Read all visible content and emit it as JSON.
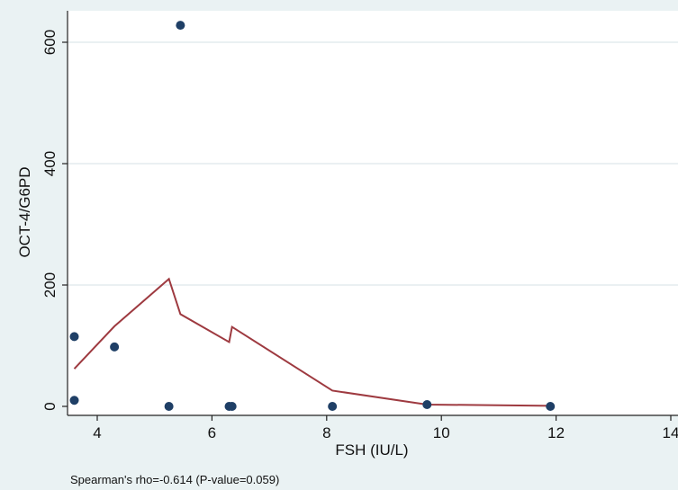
{
  "chart_data": {
    "type": "scatter",
    "title": "",
    "xlabel": "FSH (IU/L)",
    "ylabel": "OCT-4/G6PD",
    "xlim": [
      3.5,
      14
    ],
    "ylim": [
      0,
      630
    ],
    "x_ticks": [
      4,
      6,
      8,
      10,
      12,
      14
    ],
    "y_ticks": [
      0,
      200,
      400,
      600
    ],
    "grid": "horizontal",
    "series": [
      {
        "kind": "scatter",
        "color": "#1f3f66",
        "points": [
          {
            "x": 3.6,
            "y": 115
          },
          {
            "x": 3.6,
            "y": 10
          },
          {
            "x": 4.3,
            "y": 98
          },
          {
            "x": 5.25,
            "y": 0
          },
          {
            "x": 5.45,
            "y": 628
          },
          {
            "x": 6.3,
            "y": 0
          },
          {
            "x": 6.35,
            "y": 0
          },
          {
            "x": 8.1,
            "y": 0
          },
          {
            "x": 9.75,
            "y": 3
          },
          {
            "x": 11.9,
            "y": 0
          }
        ]
      },
      {
        "kind": "line",
        "color": "#9e3a40",
        "points": [
          {
            "x": 3.6,
            "y": 62
          },
          {
            "x": 4.3,
            "y": 132
          },
          {
            "x": 5.25,
            "y": 210
          },
          {
            "x": 5.45,
            "y": 152
          },
          {
            "x": 6.3,
            "y": 106
          },
          {
            "x": 6.35,
            "y": 131
          },
          {
            "x": 8.1,
            "y": 26
          },
          {
            "x": 9.75,
            "y": 3
          },
          {
            "x": 11.9,
            "y": 1
          }
        ]
      }
    ],
    "annotation": "Spearman's rho=-0.614 (P-value=0.059)"
  },
  "colors": {
    "background": "#eaf2f3",
    "plot_area": "#ffffff",
    "gridline": "#e4ecee",
    "axis": "#222222"
  }
}
